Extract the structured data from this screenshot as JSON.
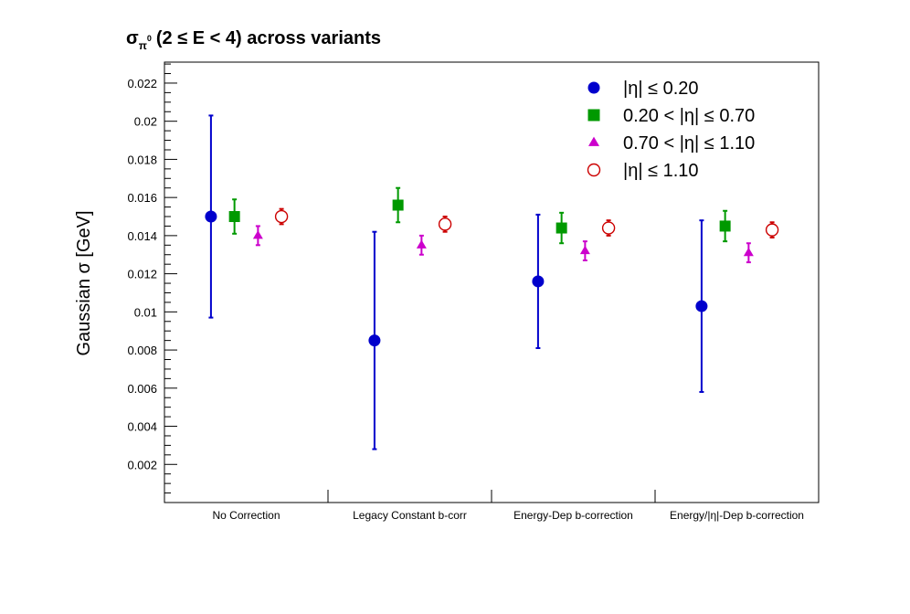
{
  "chart_data": {
    "type": "scatter",
    "title": {
      "sigma": "σ",
      "subscript": "π",
      "superscript": "0",
      "text": "(2 ≤ E < 4) across variants"
    },
    "ylabel": "Gaussian σ  [GeV]",
    "xlabel": "",
    "ylim": [
      0.0,
      0.0231
    ],
    "y_ticks": [
      "0.002",
      "0.004",
      "0.006",
      "0.008",
      "0.01",
      "0.012",
      "0.014",
      "0.016",
      "0.018",
      "0.02",
      "0.022"
    ],
    "y_tick_values": [
      0.002,
      0.004,
      0.006,
      0.008,
      0.01,
      0.012,
      0.014,
      0.016,
      0.018,
      0.02,
      0.022
    ],
    "categories": [
      "No Correction",
      "Legacy Constant b-corr",
      "Energy-Dep b-correction",
      "Energy/|η|-Dep b-correction"
    ],
    "grid": false,
    "legend_position": "top-right",
    "series": [
      {
        "name": "|η| ≤ 0.20",
        "marker": "circle-filled",
        "color": "#0000cc",
        "values": [
          0.015,
          0.0085,
          0.0116,
          0.0103
        ],
        "errors": [
          0.0053,
          0.0057,
          0.0035,
          0.0045
        ]
      },
      {
        "name": "0.20 < |η| ≤ 0.70",
        "marker": "square-filled",
        "color": "#009900",
        "values": [
          0.015,
          0.0156,
          0.0144,
          0.0145
        ],
        "errors": [
          0.0009,
          0.0009,
          0.0008,
          0.0008
        ]
      },
      {
        "name": "0.70 < |η| ≤ 1.10",
        "marker": "triangle-filled",
        "color": "#cc00cc",
        "values": [
          0.014,
          0.0135,
          0.0132,
          0.0131
        ],
        "errors": [
          0.0005,
          0.0005,
          0.0005,
          0.0005
        ]
      },
      {
        "name": "|η| ≤ 1.10",
        "marker": "circle-open",
        "color": "#cc0000",
        "values": [
          0.015,
          0.0146,
          0.0144,
          0.0143
        ],
        "errors": [
          0.0004,
          0.0004,
          0.0004,
          0.0004
        ]
      }
    ]
  }
}
